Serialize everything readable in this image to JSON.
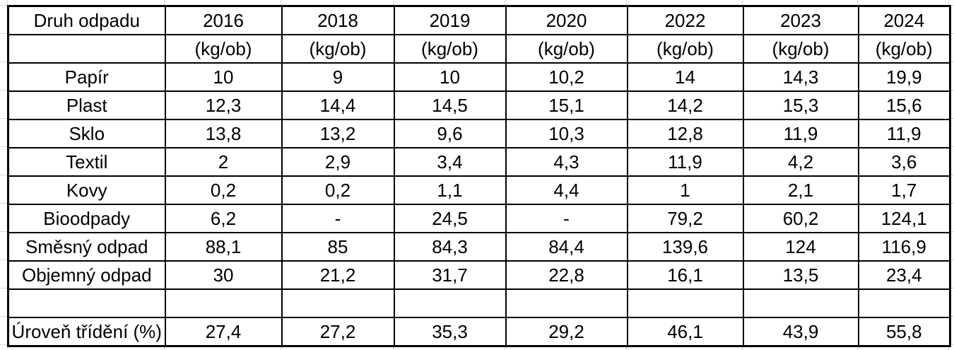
{
  "table": {
    "header": {
      "label_col": "Druh odpadu",
      "years": [
        "2016",
        "2018",
        "2019",
        "2020",
        "2022",
        "2023",
        "2024"
      ],
      "unit": "(kg/ob)"
    },
    "rows": [
      {
        "label": "Papír",
        "values": [
          "10",
          "9",
          "10",
          "10,2",
          "14",
          "14,3",
          "19,9"
        ]
      },
      {
        "label": "Plast",
        "values": [
          "12,3",
          "14,4",
          "14,5",
          "15,1",
          "14,2",
          "15,3",
          "15,6"
        ]
      },
      {
        "label": "Sklo",
        "values": [
          "13,8",
          "13,2",
          "9,6",
          "10,3",
          "12,8",
          "11,9",
          "11,9"
        ]
      },
      {
        "label": "Textil",
        "values": [
          "2",
          "2,9",
          "3,4",
          "4,3",
          "11,9",
          "4,2",
          "3,6"
        ]
      },
      {
        "label": "Kovy",
        "values": [
          "0,2",
          "0,2",
          "1,1",
          "4,4",
          "1",
          "2,1",
          "1,7"
        ]
      },
      {
        "label": "Bioodpady",
        "values": [
          "6,2",
          "-",
          "24,5",
          "-",
          "79,2",
          "60,2",
          "124,1"
        ]
      },
      {
        "label": "Směsný odpad",
        "values": [
          "88,1",
          "85",
          "84,3",
          "84,4",
          "139,6",
          "124",
          "116,9"
        ]
      },
      {
        "label": "Objemný odpad",
        "values": [
          "30",
          "21,2",
          "31,7",
          "22,8",
          "16,1",
          "13,5",
          "23,4"
        ]
      },
      {
        "label": "",
        "values": [
          "",
          "",
          "",
          "",
          "",
          "",
          ""
        ]
      },
      {
        "label": "Úroveň třídění (%)",
        "values": [
          "27,4",
          "27,2",
          "35,3",
          "29,2",
          "46,1",
          "43,9",
          "55,8"
        ]
      }
    ]
  },
  "colors": {
    "border": "#000000",
    "text": "#000000",
    "gridline": "#d9d9d9",
    "cell_background": "#ffffff"
  },
  "chart_data": {
    "type": "table",
    "title": "Druh odpadu — množství odpadu podle roku (kg/ob)",
    "columns": [
      "Druh odpadu",
      "2016",
      "2018",
      "2019",
      "2020",
      "2022",
      "2023",
      "2024"
    ],
    "unit_per_year_column": "kg/ob",
    "rows": [
      {
        "name": "Papír",
        "values": [
          10,
          9,
          10,
          10.2,
          14,
          14.3,
          19.9
        ]
      },
      {
        "name": "Plast",
        "values": [
          12.3,
          14.4,
          14.5,
          15.1,
          14.2,
          15.3,
          15.6
        ]
      },
      {
        "name": "Sklo",
        "values": [
          13.8,
          13.2,
          9.6,
          10.3,
          12.8,
          11.9,
          11.9
        ]
      },
      {
        "name": "Textil",
        "values": [
          2,
          2.9,
          3.4,
          4.3,
          11.9,
          4.2,
          3.6
        ]
      },
      {
        "name": "Kovy",
        "values": [
          0.2,
          0.2,
          1.1,
          4.4,
          1,
          2.1,
          1.7
        ]
      },
      {
        "name": "Bioodpady",
        "values": [
          6.2,
          null,
          24.5,
          null,
          79.2,
          60.2,
          124.1
        ]
      },
      {
        "name": "Směsný odpad",
        "values": [
          88.1,
          85,
          84.3,
          84.4,
          139.6,
          124,
          116.9
        ]
      },
      {
        "name": "Objemný odpad",
        "values": [
          30,
          21.2,
          31.7,
          22.8,
          16.1,
          13.5,
          23.4
        ]
      },
      {
        "name": "Úroveň třídění (%)",
        "values": [
          27.4,
          27.2,
          35.3,
          29.2,
          46.1,
          43.9,
          55.8
        ],
        "unit": "%"
      }
    ]
  }
}
